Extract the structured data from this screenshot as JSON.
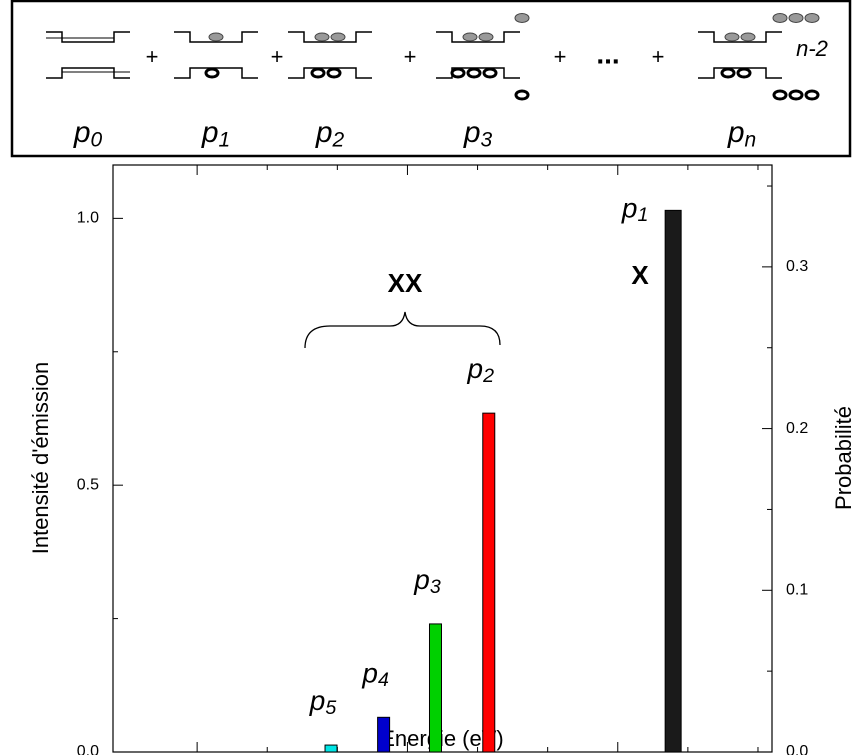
{
  "diagram": {
    "labels": [
      {
        "main": "p",
        "sub": "0"
      },
      {
        "main": "p",
        "sub": "1"
      },
      {
        "main": "p",
        "sub": "2"
      },
      {
        "main": "p",
        "sub": "3"
      },
      {
        "main": "p",
        "sub": "n"
      }
    ],
    "plus": "+",
    "ellipsis": "...",
    "n_label": "n-2"
  },
  "chart_data": {
    "type": "bar",
    "xlabel": "Energie (eV)",
    "ylabel": "Intensité d'émission",
    "y2label": "Probabilité",
    "x": [
      1.69391,
      1.69466,
      1.6954,
      1.69616,
      1.69879
    ],
    "series": [
      {
        "name": "emission",
        "values": [
          0.013,
          0.065,
          0.24,
          0.635,
          1.015
        ],
        "colors": [
          "#00e5e5",
          "#0000cc",
          "#00d000",
          "#ff0000",
          "#1a1a1a"
        ]
      }
    ],
    "bar_labels": [
      {
        "main": "p",
        "sub": "5"
      },
      {
        "main": "p",
        "sub": "4"
      },
      {
        "main": "p",
        "sub": "3"
      },
      {
        "main": "p",
        "sub": "2"
      },
      {
        "main": "p",
        "sub": "1"
      }
    ],
    "annotations": [
      "XX",
      "X"
    ],
    "xlim": [
      1.6908,
      1.7002
    ],
    "xticks": [
      1.692,
      1.695,
      1.698
    ],
    "xminor": [
      1.693,
      1.694,
      1.696,
      1.697,
      1.699,
      1.7
    ],
    "ylim": [
      0,
      1.1
    ],
    "yticks": [
      {
        "value": 0,
        "label": "0.0"
      },
      0.5,
      {
        "value": 1,
        "label": "1.0"
      }
    ],
    "yminor": [
      0.25,
      0.75
    ],
    "y2lim": [
      0,
      0.363
    ],
    "y2ticks": [
      {
        "value": 0,
        "label": "0.0"
      },
      0.1,
      0.2,
      0.3
    ],
    "y2minor": [
      0.05,
      0.15,
      0.25,
      0.35
    ]
  }
}
